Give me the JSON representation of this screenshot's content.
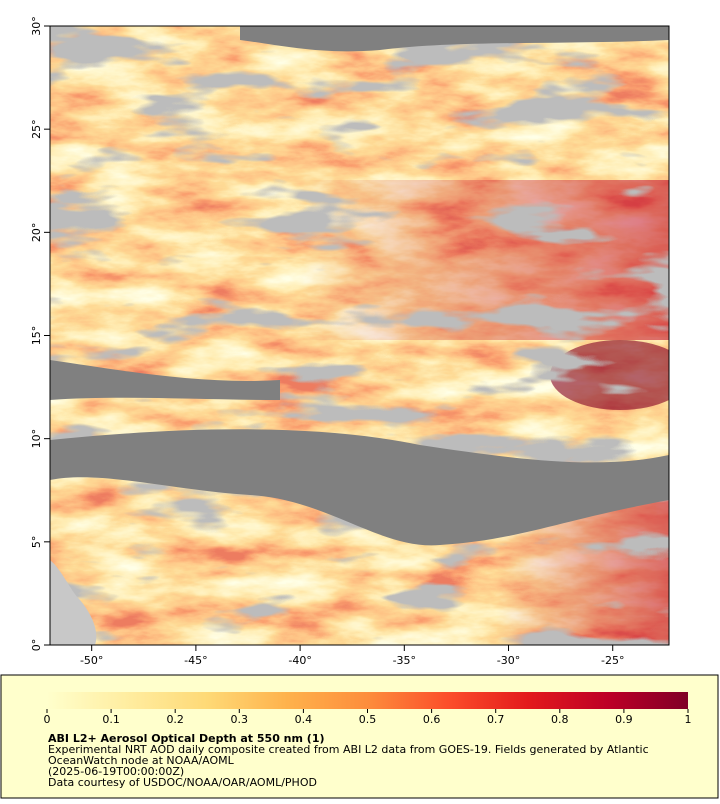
{
  "map": {
    "xlim": [
      -52,
      -22.3
    ],
    "ylim": [
      0,
      30
    ],
    "xticks": [
      {
        "value": -50,
        "label": "-50°"
      },
      {
        "value": -45,
        "label": "-45°"
      },
      {
        "value": -40,
        "label": "-40°"
      },
      {
        "value": -35,
        "label": "-35°"
      },
      {
        "value": -30,
        "label": "-30°"
      },
      {
        "value": -25,
        "label": "-25°"
      }
    ],
    "yticks": [
      {
        "value": 0,
        "label": "0°"
      },
      {
        "value": 5,
        "label": "5°"
      },
      {
        "value": 10,
        "label": "10°"
      },
      {
        "value": 15,
        "label": "15°"
      },
      {
        "value": 20,
        "label": "20°"
      },
      {
        "value": 25,
        "label": "25°"
      },
      {
        "value": 30,
        "label": "30°"
      }
    ]
  },
  "colorbar": {
    "range": [
      0,
      1
    ],
    "ticks": [
      0,
      0.1,
      0.2,
      0.3,
      0.4,
      0.5,
      0.6,
      0.7,
      0.8,
      0.9,
      1
    ],
    "colors": [
      "#ffffcc",
      "#ffeda0",
      "#fed976",
      "#feb24c",
      "#fd8d3c",
      "#fc4e2a",
      "#e31a1c",
      "#bd0026",
      "#800026"
    ]
  },
  "caption": {
    "title": "ABI L2+ Aerosol Optical Depth at 550 nm (1)",
    "lines": [
      "Experimental NRT AOD daily composite created from ABI L2 data from GOES-19. Fields generated by Atlantic",
      "OceanWatch node at NOAA/AOML",
      "(2025-06-19T00:00:00Z)",
      "Data courtesy of USDOC/NOAA/OAR/AOML/PHOD"
    ]
  }
}
